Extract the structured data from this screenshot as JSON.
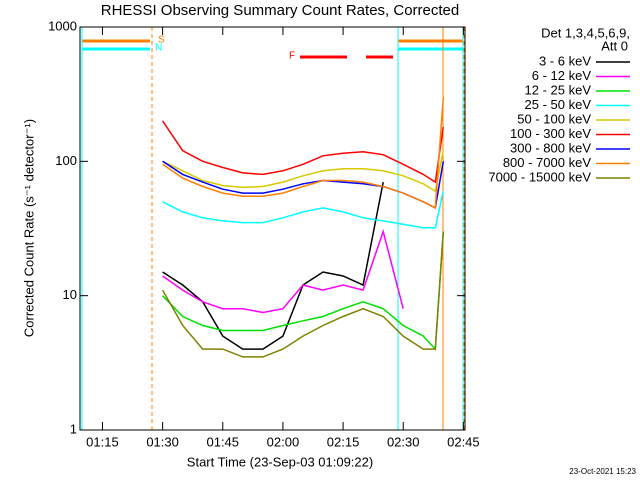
{
  "chart_data": {
    "type": "line",
    "title": "RHESSI Observing Summary Count Rates, Corrected",
    "x_label": "Start Time (23-Sep-03 01:09:22)",
    "y_label": "Corrected Count Rate (s⁻¹ detector⁻¹)",
    "legend_title": [
      "Det 1,3,4,5,6,9,",
      "Att 0"
    ],
    "annotations": [
      "S",
      "N",
      "F"
    ],
    "footer": "23-Oct-2021 15:23",
    "log_y": true,
    "xlim": [
      69.4,
      165.4
    ],
    "xticks": [
      {
        "value": 75,
        "label": "01:15"
      },
      {
        "value": 90,
        "label": "01:30"
      },
      {
        "value": 105,
        "label": "01:45"
      },
      {
        "value": 120,
        "label": "02:00"
      },
      {
        "value": 135,
        "label": "02:15"
      },
      {
        "value": 150,
        "label": "02:30"
      },
      {
        "value": 165,
        "label": "02:45"
      }
    ],
    "ylim": [
      1,
      1000
    ],
    "yticks": [
      1,
      10,
      100,
      1000
    ],
    "x": [
      90,
      95,
      100,
      105,
      110,
      115,
      120,
      125,
      130,
      135,
      140,
      145,
      150,
      155,
      158,
      160
    ],
    "series": [
      {
        "name": "3 - 6 keV",
        "color": "#000000",
        "values": [
          15,
          12,
          9,
          5,
          4,
          4,
          5,
          12,
          15,
          14,
          12,
          70,
          null,
          null,
          null,
          null
        ]
      },
      {
        "name": "6 - 12 keV",
        "color": "#ff00ff",
        "values": [
          14,
          11,
          9,
          8,
          8,
          7.5,
          8,
          12,
          11,
          12,
          11,
          30,
          8,
          null,
          null,
          null
        ]
      },
      {
        "name": "12 - 25 keV",
        "color": "#00e000",
        "values": [
          10,
          7,
          6,
          5.5,
          5.5,
          5.5,
          6,
          6.5,
          7,
          8,
          9,
          8,
          6,
          5,
          4,
          30
        ]
      },
      {
        "name": "25 - 50 keV",
        "color": "#00ffff",
        "values": [
          50,
          42,
          38,
          36,
          35,
          35,
          38,
          42,
          45,
          42,
          38,
          36,
          34,
          32,
          32,
          60
        ]
      },
      {
        "name": "50 - 100 keV",
        "color": "#d8c800",
        "values": [
          100,
          85,
          72,
          66,
          64,
          65,
          70,
          78,
          85,
          88,
          88,
          85,
          78,
          68,
          60,
          120
        ]
      },
      {
        "name": "100 - 300 keV",
        "color": "#ff0000",
        "values": [
          200,
          120,
          100,
          90,
          82,
          80,
          85,
          95,
          110,
          115,
          118,
          112,
          95,
          80,
          70,
          180
        ]
      },
      {
        "name": "300 - 800 keV",
        "color": "#0000ff",
        "values": [
          100,
          80,
          70,
          62,
          58,
          58,
          62,
          68,
          72,
          70,
          68,
          65,
          58,
          50,
          45,
          100
        ]
      },
      {
        "name": "800 - 7000 keV",
        "color": "#ff8000",
        "values": [
          95,
          75,
          65,
          58,
          55,
          55,
          58,
          65,
          72,
          72,
          70,
          65,
          58,
          50,
          45,
          300
        ]
      },
      {
        "name": "7000 - 15000 keV",
        "color": "#808000",
        "values": [
          11,
          6,
          4,
          4,
          3.5,
          3.5,
          4,
          5,
          6,
          7,
          8,
          7,
          5,
          4,
          4,
          30
        ]
      }
    ]
  }
}
